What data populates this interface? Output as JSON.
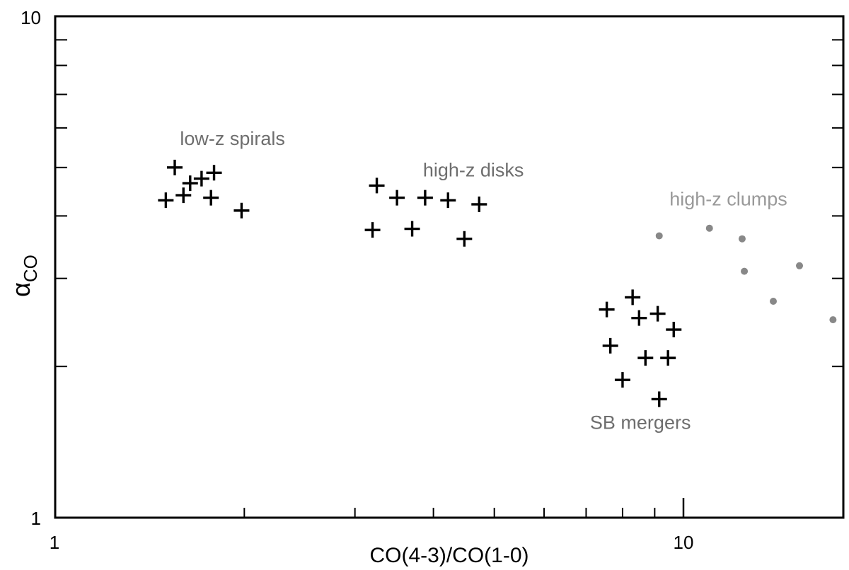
{
  "chart_data": {
    "type": "scatter",
    "title": "",
    "xlabel": "CO(4-3)/CO(1-0)",
    "ylabel_main": "α",
    "ylabel_sub": "CO",
    "x_scale": "log",
    "y_scale": "log",
    "xlim": [
      1,
      25
    ],
    "ylim": [
      1,
      10
    ],
    "x_tick_labels": [
      "1",
      "10"
    ],
    "y_tick_labels": [
      "10",
      "1"
    ],
    "grid": false,
    "legend": "none",
    "colors": {
      "plus": "#000000",
      "dot": "#888888",
      "annotation_dark": "#6e6e6e",
      "annotation_light": "#999999"
    },
    "series": [
      {
        "name": "low-z spirals",
        "marker": "plus",
        "points": [
          [
            1.55,
            5.0
          ],
          [
            1.64,
            4.65
          ],
          [
            1.71,
            4.75
          ],
          [
            1.79,
            4.88
          ],
          [
            1.5,
            4.3
          ],
          [
            1.6,
            4.4
          ],
          [
            1.77,
            4.35
          ],
          [
            1.98,
            4.1
          ]
        ]
      },
      {
        "name": "high-z disks",
        "marker": "plus",
        "points": [
          [
            3.25,
            4.6
          ],
          [
            3.5,
            4.35
          ],
          [
            3.88,
            4.35
          ],
          [
            4.22,
            4.3
          ],
          [
            4.73,
            4.22
          ],
          [
            3.2,
            3.75
          ],
          [
            3.7,
            3.77
          ],
          [
            4.48,
            3.6
          ]
        ]
      },
      {
        "name": "SB mergers",
        "marker": "plus",
        "points": [
          [
            8.3,
            2.75
          ],
          [
            7.55,
            2.6
          ],
          [
            8.5,
            2.5
          ],
          [
            9.1,
            2.55
          ],
          [
            9.65,
            2.37
          ],
          [
            7.65,
            2.2
          ],
          [
            8.7,
            2.08
          ],
          [
            9.45,
            2.08
          ],
          [
            8.0,
            1.88
          ],
          [
            9.15,
            1.72
          ]
        ]
      },
      {
        "name": "high-z clumps",
        "marker": "dot",
        "points": [
          [
            9.15,
            3.65
          ],
          [
            11.0,
            3.78
          ],
          [
            12.4,
            3.6
          ],
          [
            12.5,
            3.1
          ],
          [
            15.3,
            3.18
          ],
          [
            13.9,
            2.7
          ],
          [
            17.3,
            2.48
          ]
        ]
      }
    ],
    "annotations": [
      {
        "text": "low-z spirals",
        "x": 1.58,
        "y": 5.55,
        "style": "dark"
      },
      {
        "text": "high-z disks",
        "x": 3.85,
        "y": 4.8,
        "style": "dark"
      },
      {
        "text": "high-z clumps",
        "x": 9.5,
        "y": 4.2,
        "style": "light"
      },
      {
        "text": "SB mergers",
        "x": 7.1,
        "y": 1.5,
        "style": "dark"
      }
    ]
  }
}
